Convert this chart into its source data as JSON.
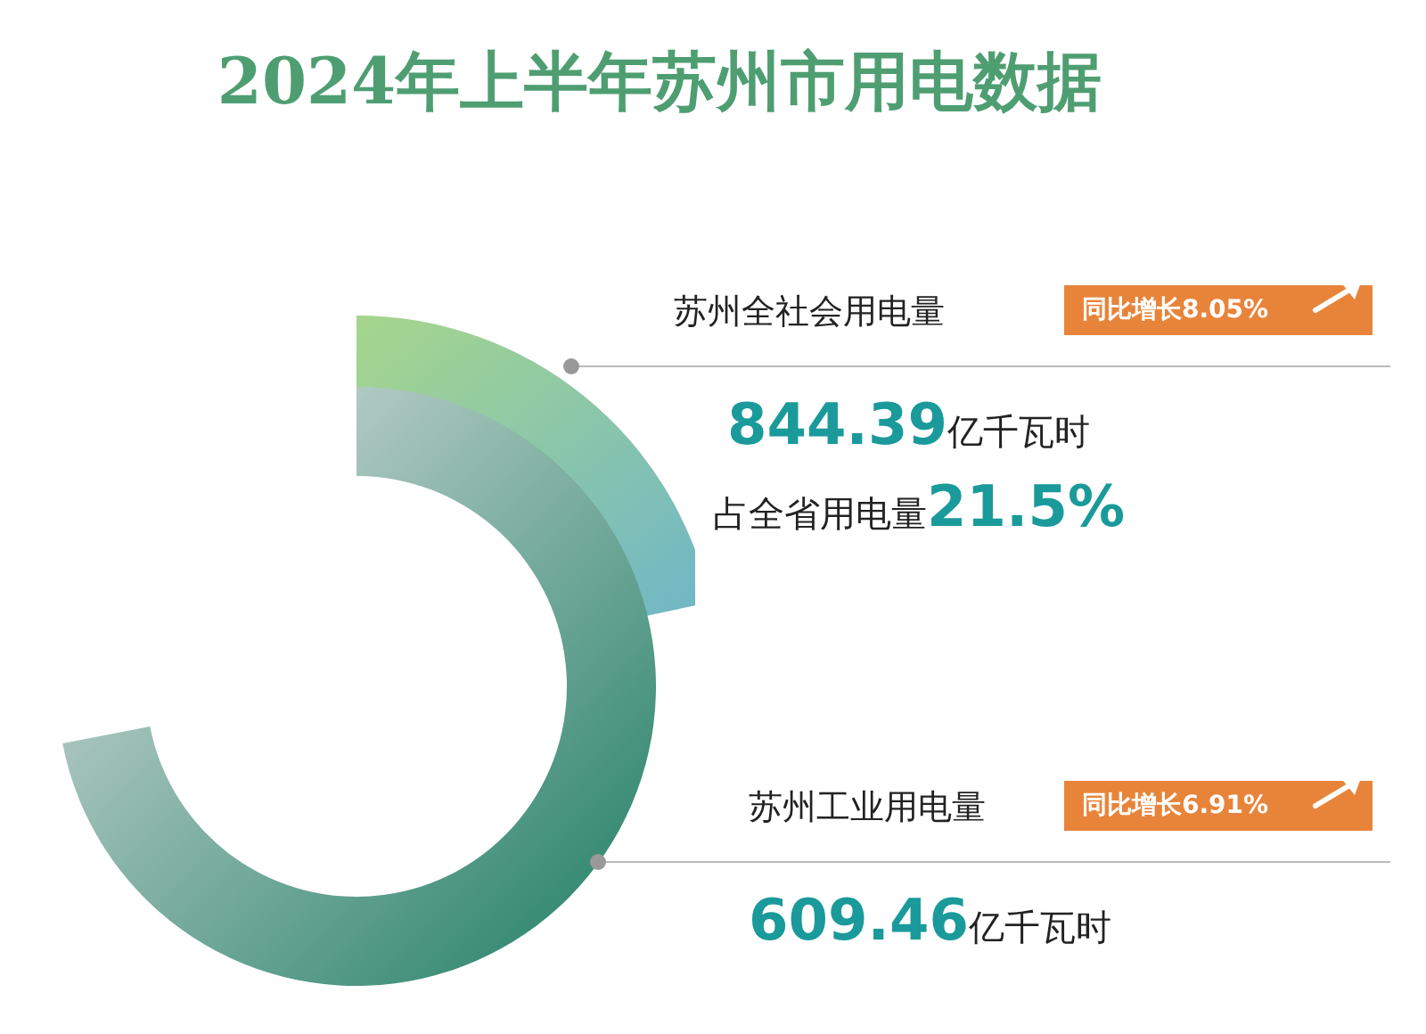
{
  "chart_data": {
    "type": "other",
    "title": "2024年上半年苏州市用电数据",
    "categories": [
      "苏州全社会用电量",
      "苏州工业用电量"
    ],
    "values": [
      844.39,
      609.46
    ],
    "value_labels": [
      "844.39亿千瓦时",
      "609.46亿千瓦时"
    ],
    "annotations": [
      "同比增长8.05%",
      "占全省用电量21.5%",
      "同比增长6.91%"
    ]
  }
}
